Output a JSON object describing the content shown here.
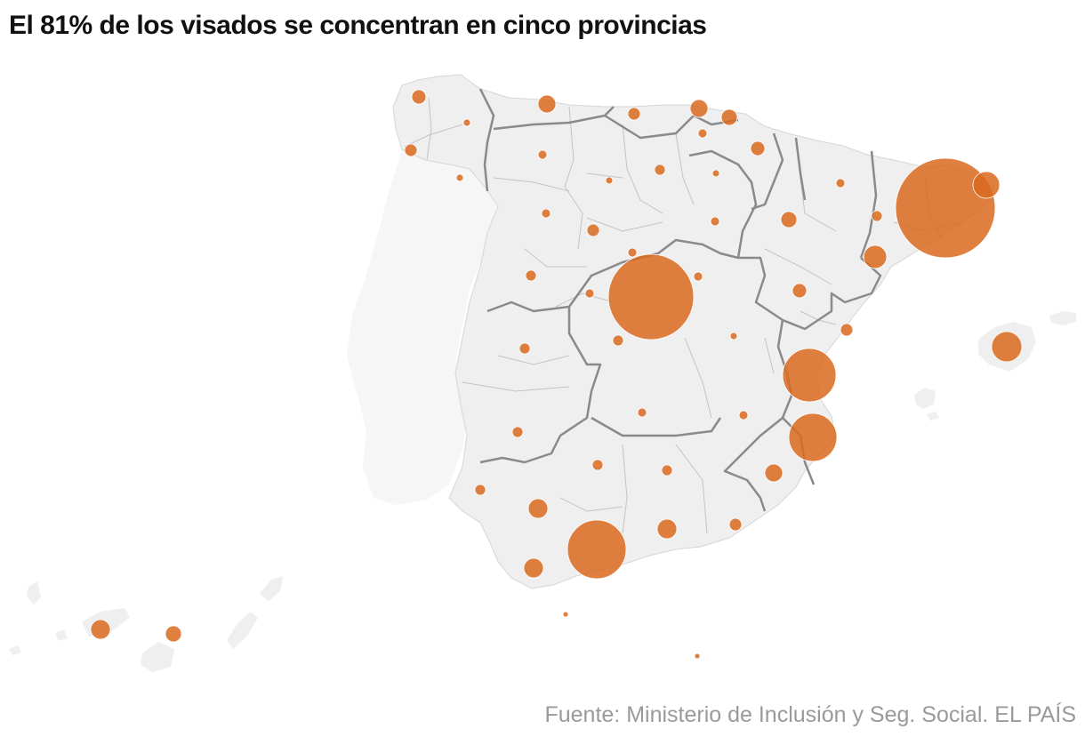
{
  "title": "El 81% de los visados se concentran en cinco provincias",
  "source": "Fuente: Ministerio de Inclusión y Seg. Social. EL PAÍS",
  "colors": {
    "bubble": "#d96a1f",
    "land_spain": "#efefef",
    "land_portugal": "#f6f6f6",
    "region_border": "#8a8a8a",
    "province_border": "#c4c4c4"
  }
}
